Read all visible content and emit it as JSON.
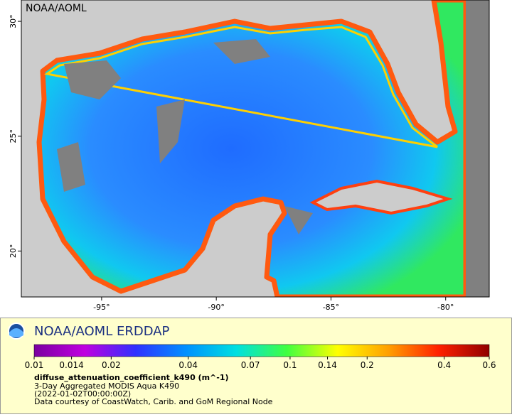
{
  "map": {
    "watermark": "NOAA/AOML",
    "lonlim": [
      -98.5,
      -78.1
    ],
    "latlim": [
      18.0,
      30.93
    ],
    "lon_ticks": [
      {
        "value": -95,
        "label": "-95°"
      },
      {
        "value": -90,
        "label": "-90°"
      },
      {
        "value": -85,
        "label": "-85°"
      },
      {
        "value": -80,
        "label": "-80°"
      }
    ],
    "lat_ticks": [
      {
        "value": 20,
        "label": "20°"
      },
      {
        "value": 25,
        "label": "25°"
      },
      {
        "value": 30,
        "label": "30°"
      }
    ]
  },
  "legend": {
    "title": "NOAA/AOML ERDDAP",
    "colorbar": {
      "lim": [
        0.01,
        0.6
      ],
      "log": true,
      "ticks": [
        0.01,
        0.014,
        0.02,
        0.04,
        0.07,
        0.1,
        0.14,
        0.2,
        0.4,
        0.6
      ],
      "colors": [
        "#7a00a0",
        "#c000e0",
        "#3030ff",
        "#0090ff",
        "#00e0e0",
        "#40ff40",
        "#ffff00",
        "#ffa000",
        "#ff2000",
        "#900000"
      ]
    },
    "variable": "diffuse_attenuation_coefficient_k490 (m^-1)",
    "lines": [
      "3-Day Aggregated MODIS Aqua K490",
      "(2022-01-02T00:00:00Z)",
      "Data courtesy of CoastWatch, Carib. and GoM Regional Node"
    ]
  }
}
